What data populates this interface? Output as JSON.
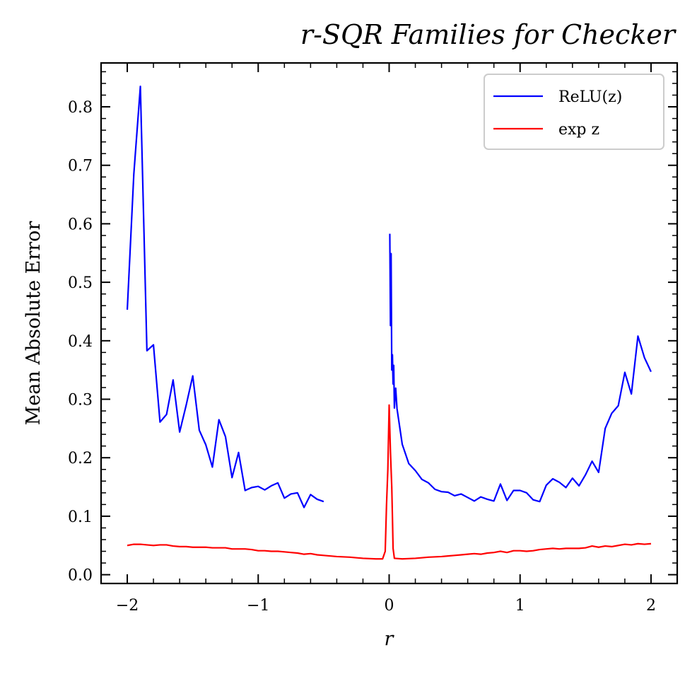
{
  "chart_data": {
    "type": "line",
    "title": "r-SQR Families for Checker",
    "xlabel": "r",
    "ylabel": "Mean Absolute Error",
    "xlim": [
      -2.2,
      2.2
    ],
    "ylim": [
      -0.015,
      0.875
    ],
    "xticks": [
      -2,
      -1,
      0,
      1,
      2
    ],
    "xtick_labels": [
      "−2",
      "−1",
      "0",
      "1",
      "2"
    ],
    "yticks": [
      0.0,
      0.1,
      0.2,
      0.3,
      0.4,
      0.5,
      0.6,
      0.7,
      0.8
    ],
    "ytick_labels": [
      "0.0",
      "0.1",
      "0.2",
      "0.3",
      "0.4",
      "0.5",
      "0.6",
      "0.7",
      "0.8"
    ],
    "legend_position": "top-right",
    "grid": false,
    "series": [
      {
        "name": "ReLU(z)",
        "color": "#0000ff",
        "segments": [
          [
            [
              -2.0,
              0.453
            ],
            [
              -1.95,
              0.685
            ],
            [
              -1.9,
              0.835
            ],
            [
              -1.85,
              0.383
            ],
            [
              -1.8,
              0.393
            ],
            [
              -1.75,
              0.261
            ],
            [
              -1.7,
              0.274
            ],
            [
              -1.65,
              0.333
            ],
            [
              -1.6,
              0.244
            ],
            [
              -1.55,
              0.29
            ],
            [
              -1.5,
              0.34
            ],
            [
              -1.45,
              0.247
            ],
            [
              -1.4,
              0.222
            ],
            [
              -1.35,
              0.184
            ],
            [
              -1.3,
              0.265
            ],
            [
              -1.25,
              0.236
            ],
            [
              -1.2,
              0.166
            ],
            [
              -1.15,
              0.209
            ],
            [
              -1.1,
              0.144
            ],
            [
              -1.05,
              0.149
            ],
            [
              -1.0,
              0.151
            ],
            [
              -0.95,
              0.145
            ],
            [
              -0.9,
              0.152
            ],
            [
              -0.85,
              0.157
            ],
            [
              -0.8,
              0.131
            ],
            [
              -0.75,
              0.138
            ],
            [
              -0.7,
              0.14
            ],
            [
              -0.65,
              0.115
            ],
            [
              -0.6,
              0.137
            ],
            [
              -0.55,
              0.129
            ],
            [
              -0.5,
              0.125
            ]
          ],
          [
            [
              0.005,
              0.583
            ],
            [
              0.01,
              0.426
            ],
            [
              0.015,
              0.549
            ],
            [
              0.02,
              0.35
            ],
            [
              0.025,
              0.376
            ],
            [
              0.03,
              0.326
            ],
            [
              0.035,
              0.358
            ],
            [
              0.04,
              0.285
            ],
            [
              0.05,
              0.319
            ],
            [
              0.06,
              0.284
            ],
            [
              0.1,
              0.223
            ],
            [
              0.15,
              0.19
            ],
            [
              0.2,
              0.178
            ],
            [
              0.25,
              0.163
            ],
            [
              0.3,
              0.157
            ],
            [
              0.35,
              0.146
            ],
            [
              0.4,
              0.142
            ],
            [
              0.45,
              0.141
            ],
            [
              0.5,
              0.135
            ],
            [
              0.55,
              0.138
            ],
            [
              0.6,
              0.132
            ],
            [
              0.65,
              0.126
            ],
            [
              0.7,
              0.133
            ],
            [
              0.75,
              0.129
            ],
            [
              0.8,
              0.126
            ],
            [
              0.85,
              0.155
            ],
            [
              0.9,
              0.127
            ],
            [
              0.95,
              0.144
            ],
            [
              1.0,
              0.144
            ],
            [
              1.05,
              0.14
            ],
            [
              1.1,
              0.128
            ],
            [
              1.15,
              0.125
            ],
            [
              1.2,
              0.153
            ],
            [
              1.25,
              0.164
            ],
            [
              1.3,
              0.158
            ],
            [
              1.35,
              0.149
            ],
            [
              1.4,
              0.165
            ],
            [
              1.45,
              0.152
            ],
            [
              1.5,
              0.171
            ],
            [
              1.55,
              0.194
            ],
            [
              1.6,
              0.175
            ],
            [
              1.65,
              0.25
            ],
            [
              1.7,
              0.276
            ],
            [
              1.75,
              0.289
            ],
            [
              1.8,
              0.346
            ],
            [
              1.85,
              0.309
            ],
            [
              1.9,
              0.408
            ],
            [
              1.95,
              0.371
            ],
            [
              2.0,
              0.347
            ]
          ]
        ]
      },
      {
        "name": "exp z",
        "color": "#ff0000",
        "segments": [
          [
            [
              -2.0,
              0.05
            ],
            [
              -1.95,
              0.052
            ],
            [
              -1.9,
              0.052
            ],
            [
              -1.85,
              0.051
            ],
            [
              -1.8,
              0.05
            ],
            [
              -1.75,
              0.051
            ],
            [
              -1.7,
              0.051
            ],
            [
              -1.65,
              0.049
            ],
            [
              -1.6,
              0.048
            ],
            [
              -1.55,
              0.048
            ],
            [
              -1.5,
              0.047
            ],
            [
              -1.45,
              0.047
            ],
            [
              -1.4,
              0.047
            ],
            [
              -1.35,
              0.046
            ],
            [
              -1.3,
              0.046
            ],
            [
              -1.25,
              0.046
            ],
            [
              -1.2,
              0.044
            ],
            [
              -1.15,
              0.044
            ],
            [
              -1.1,
              0.044
            ],
            [
              -1.05,
              0.043
            ],
            [
              -1.0,
              0.041
            ],
            [
              -0.95,
              0.041
            ],
            [
              -0.9,
              0.04
            ],
            [
              -0.85,
              0.04
            ],
            [
              -0.8,
              0.039
            ],
            [
              -0.75,
              0.038
            ],
            [
              -0.7,
              0.037
            ],
            [
              -0.65,
              0.035
            ],
            [
              -0.6,
              0.036
            ],
            [
              -0.55,
              0.034
            ],
            [
              -0.5,
              0.033
            ],
            [
              -0.4,
              0.031
            ],
            [
              -0.3,
              0.03
            ],
            [
              -0.2,
              0.028
            ],
            [
              -0.1,
              0.027
            ],
            [
              -0.05,
              0.027
            ],
            [
              -0.03,
              0.04
            ],
            [
              -0.02,
              0.12
            ],
            [
              -0.01,
              0.18
            ],
            [
              0.0,
              0.29
            ],
            [
              0.01,
              0.21
            ],
            [
              0.02,
              0.15
            ],
            [
              0.025,
              0.1
            ],
            [
              0.03,
              0.045
            ],
            [
              0.04,
              0.028
            ],
            [
              0.1,
              0.027
            ],
            [
              0.2,
              0.028
            ],
            [
              0.3,
              0.03
            ],
            [
              0.4,
              0.031
            ],
            [
              0.45,
              0.032
            ],
            [
              0.5,
              0.033
            ],
            [
              0.55,
              0.034
            ],
            [
              0.6,
              0.035
            ],
            [
              0.65,
              0.036
            ],
            [
              0.7,
              0.035
            ],
            [
              0.75,
              0.037
            ],
            [
              0.8,
              0.038
            ],
            [
              0.85,
              0.04
            ],
            [
              0.9,
              0.038
            ],
            [
              0.95,
              0.041
            ],
            [
              1.0,
              0.041
            ],
            [
              1.05,
              0.04
            ],
            [
              1.1,
              0.041
            ],
            [
              1.15,
              0.043
            ],
            [
              1.2,
              0.044
            ],
            [
              1.25,
              0.045
            ],
            [
              1.3,
              0.044
            ],
            [
              1.35,
              0.045
            ],
            [
              1.4,
              0.045
            ],
            [
              1.45,
              0.045
            ],
            [
              1.5,
              0.046
            ],
            [
              1.55,
              0.049
            ],
            [
              1.6,
              0.047
            ],
            [
              1.65,
              0.049
            ],
            [
              1.7,
              0.048
            ],
            [
              1.75,
              0.05
            ],
            [
              1.8,
              0.052
            ],
            [
              1.85,
              0.051
            ],
            [
              1.9,
              0.053
            ],
            [
              1.95,
              0.052
            ],
            [
              2.0,
              0.053
            ]
          ]
        ]
      }
    ]
  }
}
